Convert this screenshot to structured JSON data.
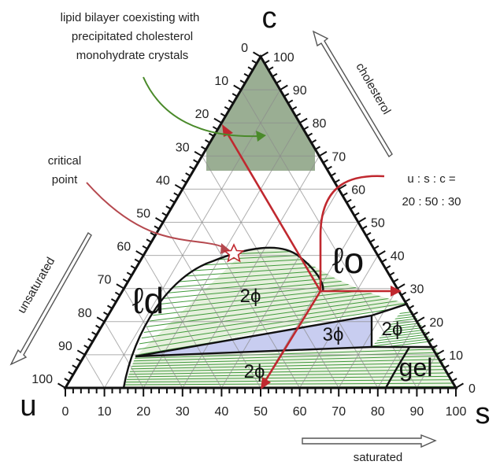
{
  "vertices": {
    "top": "c",
    "left": "u",
    "right": "s"
  },
  "axis_titles": {
    "cholesterol": "cholesterol",
    "unsaturated": "unsaturated",
    "saturated": "saturated"
  },
  "ticks": [
    "0",
    "10",
    "20",
    "30",
    "40",
    "50",
    "60",
    "70",
    "80",
    "90",
    "100"
  ],
  "annotations": {
    "crystals": [
      "lipid bilayer coexisting with",
      "precipitated cholesterol",
      "monohydrate crystals"
    ],
    "critical": [
      "critical",
      "point"
    ],
    "composition": [
      "u : s : c =",
      "20 : 50 : 30"
    ]
  },
  "phase_labels": {
    "ld": "ℓd",
    "lo": "ℓo",
    "two_phase_upper": "2ϕ",
    "three_phase": "3ϕ",
    "two_phase_right": "2ϕ",
    "two_phase_lower": "2ϕ",
    "gel": "gel"
  },
  "colors": {
    "green_region": "#9aae93",
    "tie_line": "#3f9a3a",
    "three_phase_fill": "#c8cdf0",
    "red_arrow": "#c0282f",
    "green_arrow": "#4a8a2a",
    "phase_label_green": "#3f8f3f",
    "phase_label_blue": "#4a6fd0",
    "phase_label_grey": "#8a8a8a"
  }
}
